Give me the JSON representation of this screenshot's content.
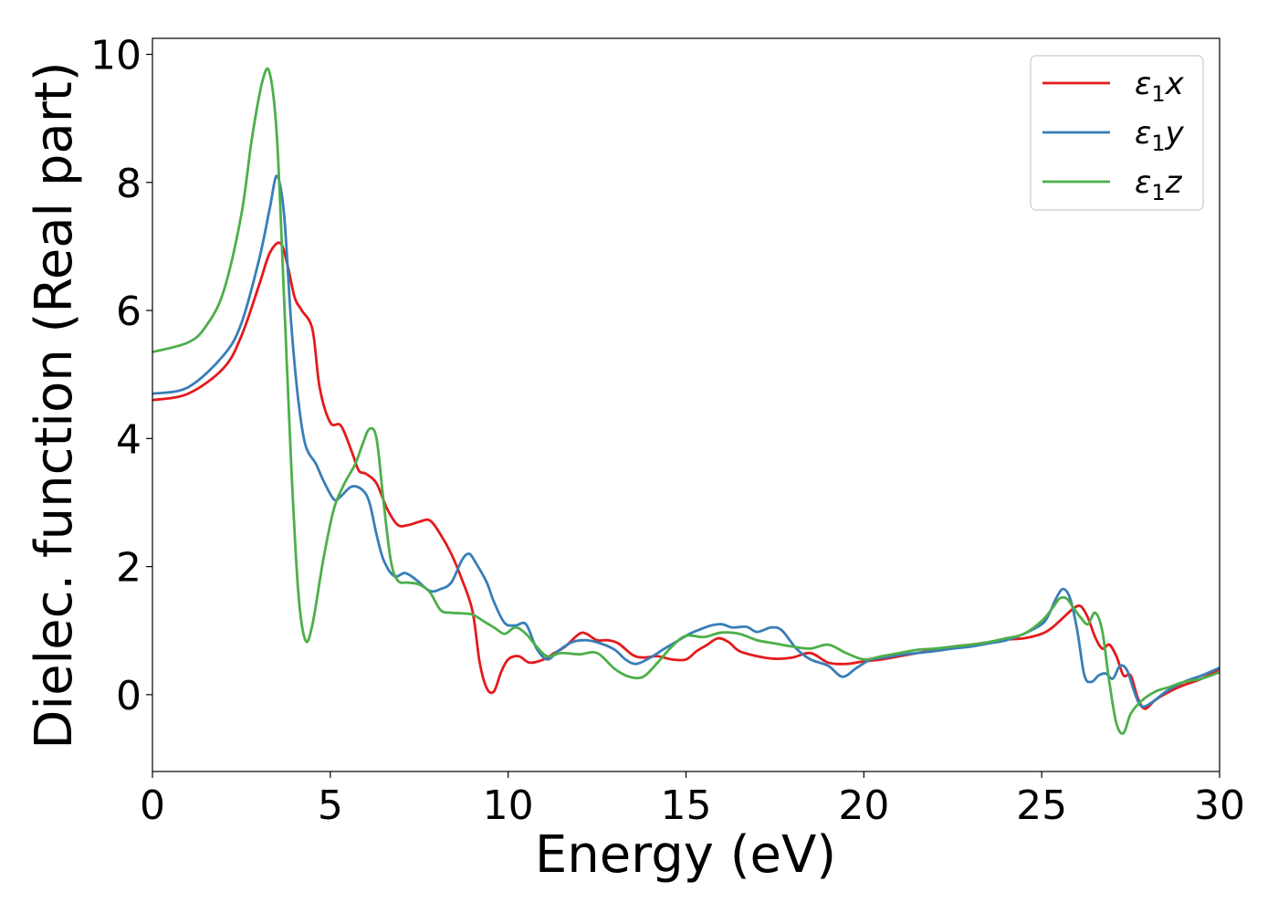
{
  "chart_data": {
    "type": "line",
    "title": "",
    "xlabel": "Energy (eV)",
    "ylabel": "Dielec. function (Real part)",
    "xlim": [
      0,
      30
    ],
    "ylim": [
      -1.2,
      10.25
    ],
    "xticks": [
      0,
      5,
      10,
      15,
      20,
      25,
      30
    ],
    "yticks": [
      0,
      2,
      4,
      6,
      8,
      10
    ],
    "xtick_labels": [
      "0",
      "5",
      "10",
      "15",
      "20",
      "25",
      "30"
    ],
    "ytick_labels": [
      "0",
      "2",
      "4",
      "6",
      "8",
      "10"
    ],
    "grid": false,
    "legend_position": "top-right",
    "series": [
      {
        "name": "ε₁x",
        "legend_base": "ε",
        "legend_sub": "1",
        "legend_var": "x",
        "color": "#e41a1c",
        "x": [
          0,
          1,
          2,
          2.5,
          3,
          3.3,
          3.6,
          3.8,
          4,
          4.2,
          4.5,
          4.7,
          5,
          5.3,
          5.6,
          5.8,
          6,
          6.3,
          6.6,
          6.9,
          7.2,
          7.5,
          7.8,
          8.1,
          8.4,
          8.7,
          9,
          9.2,
          9.4,
          9.6,
          9.8,
          10,
          10.3,
          10.6,
          11,
          11.3,
          11.6,
          12,
          12.2,
          12.5,
          12.8,
          13.1,
          13.5,
          13.8,
          14.2,
          14.6,
          15,
          15.3,
          15.6,
          15.9,
          16.2,
          16.5,
          17,
          17.5,
          18,
          18.5,
          19,
          19.5,
          20,
          20.5,
          21,
          21.5,
          22,
          22.5,
          23,
          23.5,
          24,
          24.5,
          25,
          25.3,
          25.6,
          25.9,
          26.1,
          26.3,
          26.5,
          26.7,
          26.9,
          27.1,
          27.3,
          27.5,
          27.7,
          27.9,
          28.2,
          28.6,
          29,
          29.5,
          30
        ],
        "y": [
          4.6,
          4.7,
          5.1,
          5.6,
          6.4,
          6.9,
          7.05,
          6.7,
          6.2,
          6.0,
          5.7,
          4.8,
          4.25,
          4.2,
          3.8,
          3.5,
          3.45,
          3.3,
          2.9,
          2.65,
          2.65,
          2.7,
          2.72,
          2.5,
          2.2,
          1.8,
          1.3,
          0.5,
          0.1,
          0.05,
          0.35,
          0.55,
          0.6,
          0.5,
          0.55,
          0.65,
          0.75,
          0.95,
          0.95,
          0.85,
          0.85,
          0.8,
          0.62,
          0.58,
          0.6,
          0.55,
          0.55,
          0.68,
          0.78,
          0.88,
          0.82,
          0.68,
          0.6,
          0.56,
          0.58,
          0.65,
          0.5,
          0.48,
          0.52,
          0.55,
          0.6,
          0.65,
          0.7,
          0.75,
          0.78,
          0.82,
          0.86,
          0.88,
          0.95,
          1.05,
          1.2,
          1.35,
          1.38,
          1.2,
          0.9,
          0.72,
          0.78,
          0.6,
          0.3,
          0.3,
          -0.05,
          -0.22,
          -0.08,
          0.05,
          0.15,
          0.25,
          0.4
        ]
      },
      {
        "name": "ε₁y",
        "legend_base": "ε",
        "legend_sub": "1",
        "legend_var": "y",
        "color": "#377eb8",
        "x": [
          0,
          1,
          2,
          2.5,
          3,
          3.3,
          3.5,
          3.7,
          3.9,
          4.1,
          4.3,
          4.6,
          4.8,
          5.1,
          5.3,
          5.6,
          5.9,
          6.1,
          6.3,
          6.5,
          6.8,
          7.1,
          7.4,
          7.8,
          8.1,
          8.4,
          8.7,
          8.9,
          9.1,
          9.4,
          9.6,
          9.9,
          10.2,
          10.5,
          10.8,
          11.1,
          11.4,
          11.8,
          12.2,
          12.6,
          13.0,
          13.3,
          13.6,
          14,
          14.4,
          14.8,
          15.1,
          15.4,
          15.7,
          16.0,
          16.3,
          16.7,
          17,
          17.4,
          17.7,
          18.1,
          18.5,
          19,
          19.4,
          19.8,
          20.2,
          20.6,
          21,
          21.5,
          22,
          22.5,
          23,
          23.5,
          24,
          24.5,
          25,
          25.2,
          25.4,
          25.6,
          25.8,
          26.0,
          26.2,
          26.4,
          26.6,
          26.8,
          27.0,
          27.2,
          27.4,
          27.6,
          27.8,
          28.1,
          28.5,
          29,
          29.5,
          30
        ],
        "y": [
          4.7,
          4.8,
          5.3,
          5.8,
          6.8,
          7.6,
          8.1,
          7.5,
          5.8,
          4.6,
          3.9,
          3.6,
          3.35,
          3.05,
          3.1,
          3.25,
          3.2,
          3.0,
          2.5,
          2.1,
          1.85,
          1.9,
          1.8,
          1.62,
          1.65,
          1.75,
          2.1,
          2.2,
          2.05,
          1.75,
          1.45,
          1.12,
          1.08,
          1.1,
          0.72,
          0.55,
          0.68,
          0.82,
          0.85,
          0.8,
          0.7,
          0.55,
          0.48,
          0.58,
          0.72,
          0.85,
          0.95,
          1.02,
          1.08,
          1.1,
          1.05,
          1.06,
          0.98,
          1.05,
          1.0,
          0.72,
          0.55,
          0.45,
          0.28,
          0.42,
          0.55,
          0.58,
          0.62,
          0.65,
          0.68,
          0.72,
          0.75,
          0.8,
          0.85,
          0.95,
          1.1,
          1.25,
          1.5,
          1.65,
          1.5,
          1.0,
          0.3,
          0.2,
          0.3,
          0.33,
          0.25,
          0.45,
          0.38,
          0.05,
          -0.18,
          -0.12,
          0.05,
          0.2,
          0.3,
          0.42
        ]
      },
      {
        "name": "ε₁z",
        "legend_base": "ε",
        "legend_sub": "1",
        "legend_var": "z",
        "color": "#4daf4a",
        "x": [
          0,
          1,
          1.5,
          2,
          2.5,
          2.8,
          3.1,
          3.3,
          3.5,
          3.7,
          3.9,
          4.1,
          4.3,
          4.5,
          4.8,
          5.1,
          5.4,
          5.7,
          5.9,
          6.1,
          6.3,
          6.5,
          6.7,
          6.9,
          7.2,
          7.5,
          7.8,
          8.1,
          8.4,
          8.7,
          9.0,
          9.3,
          9.6,
          9.9,
          10.2,
          10.5,
          10.8,
          11.1,
          11.5,
          12,
          12.5,
          13,
          13.4,
          13.8,
          14.2,
          14.6,
          15,
          15.5,
          16,
          16.5,
          17,
          17.5,
          18,
          18.5,
          19,
          19.5,
          20,
          20.5,
          21,
          21.5,
          22,
          22.5,
          23,
          23.5,
          24,
          24.5,
          25,
          25.3,
          25.5,
          25.7,
          25.9,
          26.1,
          26.3,
          26.5,
          26.7,
          26.9,
          27.1,
          27.3,
          27.5,
          27.8,
          28.2,
          28.6,
          29,
          29.5,
          30
        ],
        "y": [
          5.35,
          5.5,
          5.75,
          6.3,
          7.5,
          8.7,
          9.6,
          9.7,
          8.7,
          6.2,
          3.6,
          1.6,
          0.85,
          1.1,
          2.1,
          2.9,
          3.3,
          3.6,
          3.9,
          4.15,
          4.0,
          3.0,
          2.1,
          1.78,
          1.75,
          1.72,
          1.6,
          1.32,
          1.28,
          1.27,
          1.25,
          1.15,
          1.05,
          0.95,
          1.05,
          0.95,
          0.75,
          0.6,
          0.65,
          0.63,
          0.65,
          0.4,
          0.28,
          0.28,
          0.5,
          0.75,
          0.92,
          0.9,
          0.97,
          0.95,
          0.85,
          0.8,
          0.75,
          0.72,
          0.78,
          0.65,
          0.55,
          0.6,
          0.65,
          0.7,
          0.72,
          0.75,
          0.78,
          0.82,
          0.88,
          0.95,
          1.15,
          1.35,
          1.5,
          1.5,
          1.35,
          1.2,
          1.1,
          1.28,
          1.0,
          0.2,
          -0.45,
          -0.6,
          -0.3,
          -0.1,
          0.05,
          0.12,
          0.2,
          0.25,
          0.35
        ]
      }
    ]
  }
}
